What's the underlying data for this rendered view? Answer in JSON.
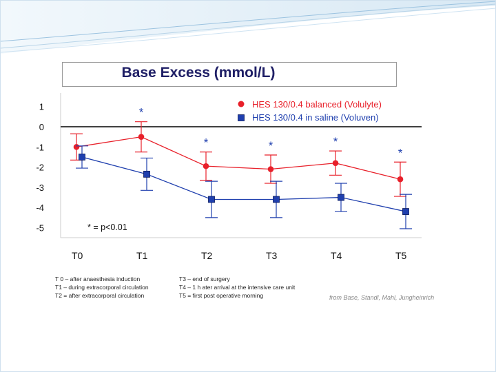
{
  "chart_data": {
    "type": "line",
    "title": "Base Excess (mmol/L)",
    "xlabel": "",
    "ylabel": "",
    "categories": [
      "T0",
      "T1",
      "T2",
      "T3",
      "T4",
      "T5"
    ],
    "y_ticks": [
      "1",
      "0",
      "-1",
      "-2",
      "-3",
      "-4",
      "-5"
    ],
    "ylim": [
      -5.3,
      1.5
    ],
    "reference_line": 0,
    "series": [
      {
        "name": "HES 130/0.4 balanced (Volulyte)",
        "color": "#e8202a",
        "marker": "circle",
        "values": [
          -1.0,
          -0.5,
          -1.95,
          -2.1,
          -1.8,
          -2.6
        ],
        "error": [
          0.65,
          0.75,
          0.7,
          0.7,
          0.6,
          0.85
        ]
      },
      {
        "name": "HES 130/0.4 in saline (Voluven)",
        "color": "#1f3fae",
        "marker": "square",
        "values": [
          -1.5,
          -2.35,
          -3.6,
          -3.6,
          -3.5,
          -4.2
        ],
        "error": [
          0.55,
          0.8,
          0.9,
          0.9,
          0.7,
          0.85
        ]
      }
    ],
    "significance_marks": [
      {
        "category": "T1",
        "label": "*"
      },
      {
        "category": "T2",
        "label": "*"
      },
      {
        "category": "T3",
        "label": "*"
      },
      {
        "category": "T4",
        "label": "*"
      },
      {
        "category": "T5",
        "label": "*"
      }
    ],
    "significance_note": "* = p<0.01"
  },
  "footnotes": {
    "left": [
      "T 0 – after anaesthesia induction",
      "T1 – during extracorporal circulation",
      "T2 = after extracorporal circulation"
    ],
    "right": [
      "T3 – end of surgery",
      "T4 – 1 h ater arrival at the intensive care unit",
      "T5 = first post operative morning"
    ]
  },
  "source": "from  Base, Standl, Mahl, Jungheinrich",
  "colors": {
    "decor_light": "#cfe3f2",
    "decor_dark": "#9cc3e0",
    "title_text": "#1f1f66"
  }
}
